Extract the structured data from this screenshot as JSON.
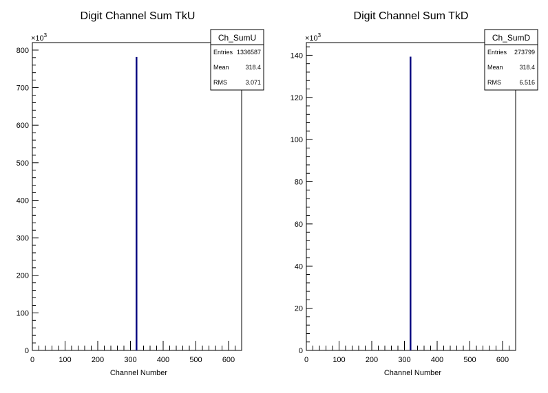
{
  "chart_data": [
    {
      "type": "histogram",
      "title": "Digit Channel Sum TkU",
      "xlabel": "Channel Number",
      "ylabel": "",
      "xlim": [
        0,
        640
      ],
      "ylim": [
        0,
        820
      ],
      "y_multiplier": "×10",
      "y_exponent": "3",
      "xticks": [
        0,
        100,
        200,
        300,
        400,
        500,
        600
      ],
      "yticks": [
        0,
        100,
        200,
        300,
        400,
        500,
        600,
        700,
        800
      ],
      "series": [
        {
          "bins": [
            318,
            319
          ],
          "values": [
            780
          ]
        }
      ],
      "line_color": "#000080",
      "stats": {
        "name": "Ch_SumU",
        "rows": [
          {
            "label": "Entries",
            "value": "1336587"
          },
          {
            "label": "Mean",
            "value": "318.4"
          },
          {
            "label": "RMS",
            "value": "3.071"
          }
        ]
      }
    },
    {
      "type": "histogram",
      "title": "Digit Channel Sum TkD",
      "xlabel": "Channel Number",
      "ylabel": "",
      "xlim": [
        0,
        640
      ],
      "ylim": [
        0,
        146
      ],
      "y_multiplier": "×10",
      "y_exponent": "3",
      "xticks": [
        0,
        100,
        200,
        300,
        400,
        500,
        600
      ],
      "yticks": [
        0,
        20,
        40,
        60,
        80,
        100,
        120,
        140
      ],
      "series": [
        {
          "bins": [
            318,
            319
          ],
          "values": [
            139
          ]
        }
      ],
      "line_color": "#000080",
      "stats": {
        "name": "Ch_SumD",
        "rows": [
          {
            "label": "Entries",
            "value": "273799"
          },
          {
            "label": "Mean",
            "value": "318.4"
          },
          {
            "label": "RMS",
            "value": "6.516"
          }
        ]
      }
    }
  ]
}
